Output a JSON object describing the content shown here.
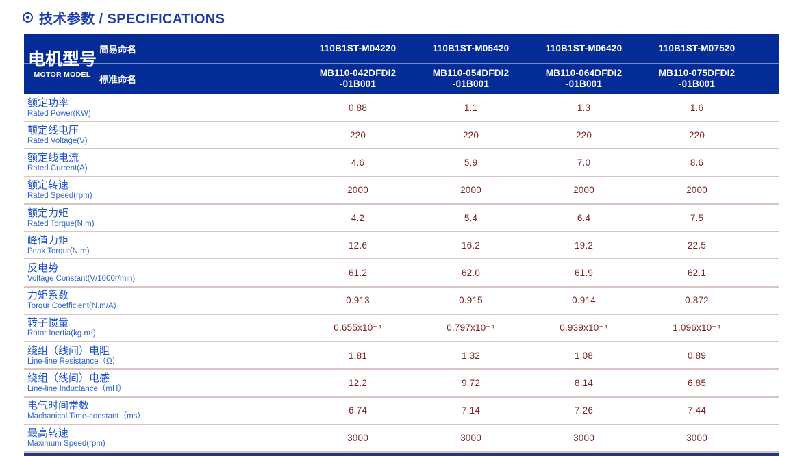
{
  "page_title": {
    "icon": "circle-dot",
    "text": "技术参数 / SPECIFICATIONS"
  },
  "table": {
    "header": {
      "group_label_cn": "电机型号",
      "group_label_en": "MOTOR MODEL",
      "simple_name_label": "简易命名",
      "standard_name_label": "标准命名",
      "columns": [
        {
          "simple": "110B1ST-M04220",
          "standard": [
            "MB110-042DFDI2",
            "-01B001"
          ]
        },
        {
          "simple": "110B1ST-M05420",
          "standard": [
            "MB110-054DFDI2",
            "-01B001"
          ]
        },
        {
          "simple": "110B1ST-M06420",
          "standard": [
            "MB110-064DFDI2",
            "-01B001"
          ]
        },
        {
          "simple": "110B1ST-M07520",
          "standard": [
            "MB110-075DFDI2",
            "-01B001"
          ]
        }
      ]
    },
    "rows": [
      {
        "cn": "额定功率",
        "en": "Rated Power(KW)",
        "values": [
          "0.88",
          "1.1",
          "1.3",
          "1.6"
        ]
      },
      {
        "cn": "额定线电压",
        "en": "Rated Voltage(V)",
        "values": [
          "220",
          "220",
          "220",
          "220"
        ]
      },
      {
        "cn": "额定线电流",
        "en": "Rated Current(A)",
        "values": [
          "4.6",
          "5.9",
          "7.0",
          "8.6"
        ]
      },
      {
        "cn": "额定转速",
        "en": "Rated Speed(rpm)",
        "values": [
          "2000",
          "2000",
          "2000",
          "2000"
        ]
      },
      {
        "cn": "额定力矩",
        "en": "Rated Torque(N.m)",
        "values": [
          "4.2",
          "5.4",
          "6.4",
          "7.5"
        ]
      },
      {
        "cn": "峰值力矩",
        "en": "Peak Torqur(N.m)",
        "values": [
          "12.6",
          "16.2",
          "19.2",
          "22.5"
        ]
      },
      {
        "cn": "反电势",
        "en": "Voltage Constant(V/1000r/min)",
        "values": [
          "61.2",
          "62.0",
          "61.9",
          "62.1"
        ]
      },
      {
        "cn": "力矩系数",
        "en": "Torqur Coefficient(N.m/A)",
        "values": [
          "0.913",
          "0.915",
          "0.914",
          "0.872"
        ]
      },
      {
        "cn": "转子惯量",
        "en": "Rotor Inertia(kg.m²)",
        "values": [
          "0.655x10⁻⁴",
          "0.797x10⁻⁴",
          "0.939x10⁻⁴",
          "1.096x10⁻⁴"
        ]
      },
      {
        "cn": "绕组（线间）电阻",
        "en": "Line-line Resistance（Ω）",
        "values": [
          "1.81",
          "1.32",
          "1.08",
          "0.89"
        ]
      },
      {
        "cn": "绕组（线间）电感",
        "en": "Line-line Inductance（mH）",
        "values": [
          "12.2",
          "9.72",
          "8.14",
          "6.85"
        ]
      },
      {
        "cn": "电气时间常数",
        "en": "Machanical Time-constant（ms）",
        "values": [
          "6.74",
          "7.14",
          "7.26",
          "7.44"
        ]
      },
      {
        "cn": "最高转速",
        "en": "Maximum Speed(rpm)",
        "values": [
          "3000",
          "3000",
          "3000",
          "3000"
        ]
      }
    ]
  },
  "colors": {
    "title_blue": "#1c3da6",
    "header_bg": "#042c96",
    "label_cn_blue": "#1e54c8",
    "label_en_blue": "#3064cd",
    "value_maroon": "#7f2121",
    "separator": "#d9c6c4",
    "bottom_bar": "#27397a"
  }
}
